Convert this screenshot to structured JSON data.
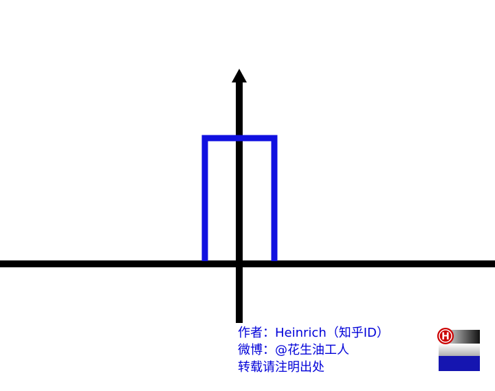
{
  "diagram": {
    "shape": "rectangular-pulse",
    "colors": {
      "axis": "#000000",
      "pulse": "#1010e0",
      "credit_text": "#0000d8",
      "logo_badge": "#cc0000"
    }
  },
  "credit": {
    "author": "作者：Heinrich（知乎ID）",
    "weibo": "微博：@花生油工人",
    "notice": "转载请注明出处"
  },
  "logo": {
    "letter": "H",
    "icon": "heinrich-logo-icon"
  }
}
